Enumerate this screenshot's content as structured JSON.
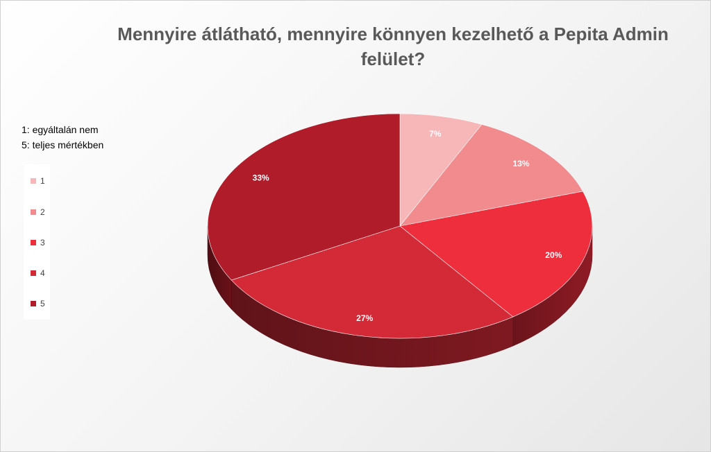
{
  "title_lines": [
    "Mennyire átlátható, mennyire könnyen kezelhető a Pepita Admin",
    "felület?"
  ],
  "note_lines": [
    "1: egyáltalán nem",
    "5: teljes mértékben"
  ],
  "chart_data": {
    "type": "pie",
    "style": "3d",
    "title": "Mennyire átlátható, mennyire könnyen kezelhető a Pepita Admin felület?",
    "categories": [
      "1",
      "2",
      "3",
      "4",
      "5"
    ],
    "values": [
      7,
      13,
      20,
      27,
      33
    ],
    "data_labels": [
      "7%",
      "13%",
      "20%",
      "27%",
      "33%"
    ],
    "colors": [
      "#f7b7b9",
      "#f28b8e",
      "#ee2d3d",
      "#d42a37",
      "#b01c2a"
    ],
    "legend_position": "left"
  }
}
